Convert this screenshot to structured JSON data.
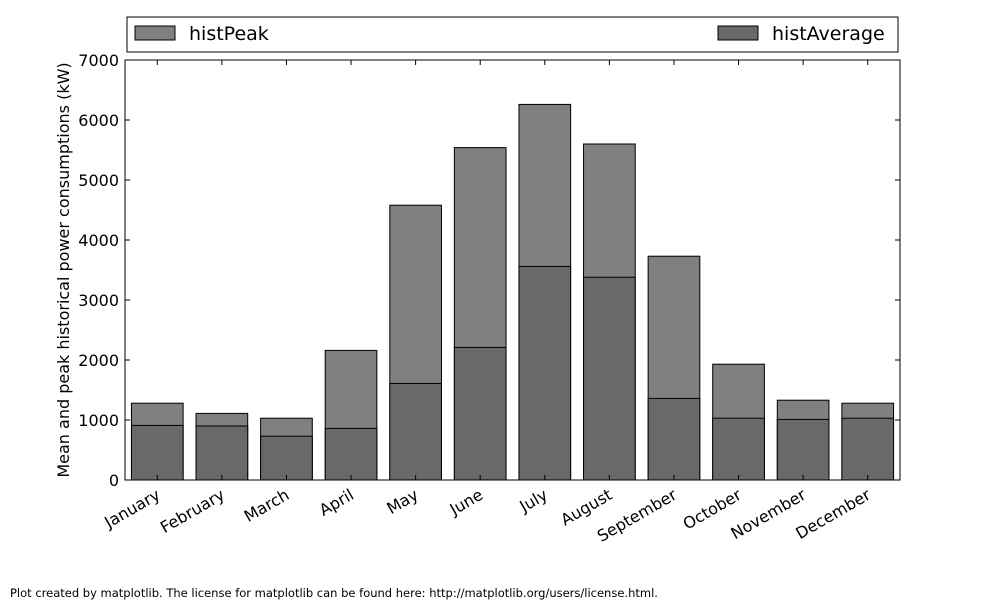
{
  "chart_data": {
    "type": "bar",
    "categories": [
      "January",
      "February",
      "March",
      "April",
      "May",
      "June",
      "July",
      "August",
      "September",
      "October",
      "November",
      "December"
    ],
    "series": [
      {
        "name": "histPeak",
        "color": "#808080",
        "values": [
          1280,
          1110,
          1030,
          2160,
          4580,
          5540,
          6260,
          5600,
          3730,
          1930,
          1330,
          1280
        ]
      },
      {
        "name": "histAverage",
        "color": "#696969",
        "values": [
          910,
          900,
          730,
          860,
          1610,
          2210,
          3560,
          3380,
          1360,
          1030,
          1010,
          1030
        ]
      }
    ],
    "ylabel": "Mean and peak historical power consumptions (kW)",
    "ylim": [
      0,
      7000
    ],
    "yticks": [
      "0",
      "1000",
      "2000",
      "3000",
      "4000",
      "5000",
      "6000",
      "7000"
    ],
    "grid": false,
    "legend": "top"
  },
  "footer": {
    "text": "Plot created by matplotlib. The license for matplotlib can be found here: http://matplotlib.org/users/license.html."
  }
}
